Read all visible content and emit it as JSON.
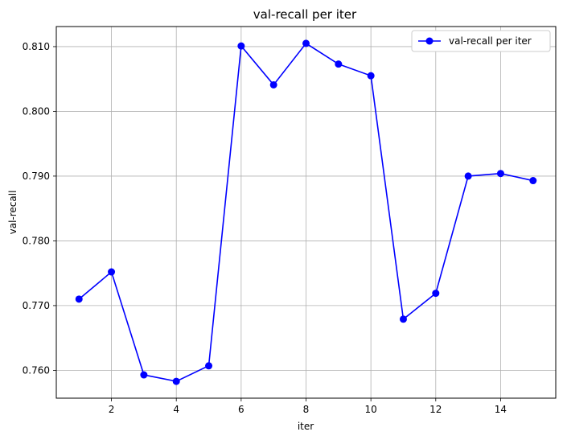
{
  "chart_data": {
    "type": "line",
    "title": "val-recall per iter",
    "xlabel": "iter",
    "ylabel": "val-recall",
    "xlim": [
      0.3,
      15.7
    ],
    "ylim": [
      0.7557,
      0.8131
    ],
    "x_ticks": [
      2,
      4,
      6,
      8,
      10,
      12,
      14
    ],
    "y_ticks": [
      0.76,
      0.77,
      0.78,
      0.79,
      0.8,
      0.81
    ],
    "y_tick_labels": [
      "0.760",
      "0.770",
      "0.780",
      "0.790",
      "0.800",
      "0.810"
    ],
    "grid": true,
    "legend_position": "top-right",
    "series": [
      {
        "name": "val-recall per iter",
        "color": "#0000ff",
        "marker": "circle",
        "x": [
          1,
          2,
          3,
          4,
          5,
          6,
          7,
          8,
          9,
          10,
          11,
          12,
          13,
          14,
          15
        ],
        "y": [
          0.771,
          0.7752,
          0.7593,
          0.7583,
          0.7607,
          0.8101,
          0.8041,
          0.8105,
          0.8073,
          0.8055,
          0.7679,
          0.7719,
          0.79,
          0.7904,
          0.7893
        ]
      }
    ]
  }
}
